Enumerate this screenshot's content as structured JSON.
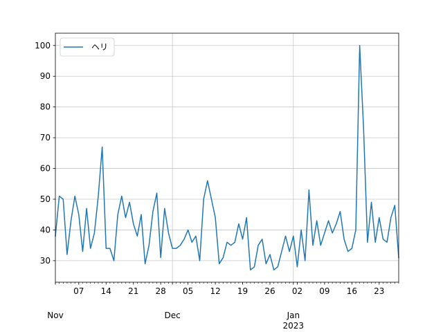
{
  "chart_data": {
    "type": "line",
    "title": "",
    "xlabel": "",
    "ylabel": "",
    "x_start": "2022-11-01",
    "x_end": "2023-01-28",
    "ylim": [
      23,
      104
    ],
    "grid": true,
    "legend_position": "top-left",
    "colors": {
      "line": "#1f77b4",
      "grid": "#b0b0b0",
      "axis": "#000000"
    },
    "series": [
      {
        "name": "ヘリ",
        "x": [
          "2022-11-01",
          "2022-11-02",
          "2022-11-03",
          "2022-11-04",
          "2022-11-05",
          "2022-11-06",
          "2022-11-07",
          "2022-11-08",
          "2022-11-09",
          "2022-11-10",
          "2022-11-11",
          "2022-11-12",
          "2022-11-13",
          "2022-11-14",
          "2022-11-15",
          "2022-11-16",
          "2022-11-17",
          "2022-11-18",
          "2022-11-19",
          "2022-11-20",
          "2022-11-21",
          "2022-11-22",
          "2022-11-23",
          "2022-11-24",
          "2022-11-25",
          "2022-11-26",
          "2022-11-27",
          "2022-11-28",
          "2022-11-29",
          "2022-11-30",
          "2022-12-01",
          "2022-12-02",
          "2022-12-03",
          "2022-12-04",
          "2022-12-05",
          "2022-12-06",
          "2022-12-07",
          "2022-12-08",
          "2022-12-09",
          "2022-12-10",
          "2022-12-11",
          "2022-12-12",
          "2022-12-13",
          "2022-12-14",
          "2022-12-15",
          "2022-12-16",
          "2022-12-17",
          "2022-12-18",
          "2022-12-19",
          "2022-12-20",
          "2022-12-21",
          "2022-12-22",
          "2022-12-23",
          "2022-12-24",
          "2022-12-25",
          "2022-12-26",
          "2022-12-27",
          "2022-12-28",
          "2022-12-29",
          "2022-12-30",
          "2022-12-31",
          "2023-01-01",
          "2023-01-02",
          "2023-01-03",
          "2023-01-04",
          "2023-01-05",
          "2023-01-06",
          "2023-01-07",
          "2023-01-08",
          "2023-01-09",
          "2023-01-10",
          "2023-01-11",
          "2023-01-12",
          "2023-01-13",
          "2023-01-14",
          "2023-01-15",
          "2023-01-16",
          "2023-01-17",
          "2023-01-18",
          "2023-01-19",
          "2023-01-20",
          "2023-01-21",
          "2023-01-22",
          "2023-01-23",
          "2023-01-24",
          "2023-01-25",
          "2023-01-26",
          "2023-01-27",
          "2023-01-28"
        ],
        "values": [
          38,
          51,
          50,
          32,
          43,
          51,
          45,
          33,
          47,
          34,
          39,
          51,
          67,
          34,
          34,
          30,
          45,
          51,
          44,
          49,
          42,
          38,
          45,
          29,
          35,
          46,
          52,
          31,
          47,
          39,
          34,
          34,
          35,
          37,
          40,
          36,
          38,
          30,
          50,
          56,
          50,
          44,
          29,
          31,
          36,
          35,
          36,
          42,
          37,
          44,
          27,
          28,
          35,
          37,
          29,
          32,
          27,
          28,
          33,
          38,
          33,
          38,
          28,
          40,
          30,
          53,
          35,
          43,
          35,
          39,
          43,
          39,
          42,
          46,
          37,
          33,
          34,
          40,
          100,
          73,
          36,
          49,
          36,
          44,
          37,
          36,
          44,
          48,
          31
        ]
      }
    ],
    "y_ticks": [
      30,
      40,
      50,
      60,
      70,
      80,
      90,
      100
    ],
    "x_ticks": [
      {
        "date": "2022-11-07",
        "label": "07"
      },
      {
        "date": "2022-11-14",
        "label": "14"
      },
      {
        "date": "2022-11-21",
        "label": "21"
      },
      {
        "date": "2022-11-28",
        "label": "28"
      },
      {
        "date": "2022-12-05",
        "label": "05"
      },
      {
        "date": "2022-12-12",
        "label": "12"
      },
      {
        "date": "2022-12-19",
        "label": "19"
      },
      {
        "date": "2022-12-26",
        "label": "26"
      },
      {
        "date": "2023-01-02",
        "label": "02"
      },
      {
        "date": "2023-01-09",
        "label": "09"
      },
      {
        "date": "2023-01-16",
        "label": "16"
      },
      {
        "date": "2023-01-23",
        "label": "23"
      }
    ],
    "x_major_ticks": [
      {
        "date": "2022-11-01",
        "label": "Nov",
        "sublabel": ""
      },
      {
        "date": "2022-12-01",
        "label": "Dec",
        "sublabel": ""
      },
      {
        "date": "2023-01-01",
        "label": "Jan",
        "sublabel": "2023"
      }
    ]
  }
}
